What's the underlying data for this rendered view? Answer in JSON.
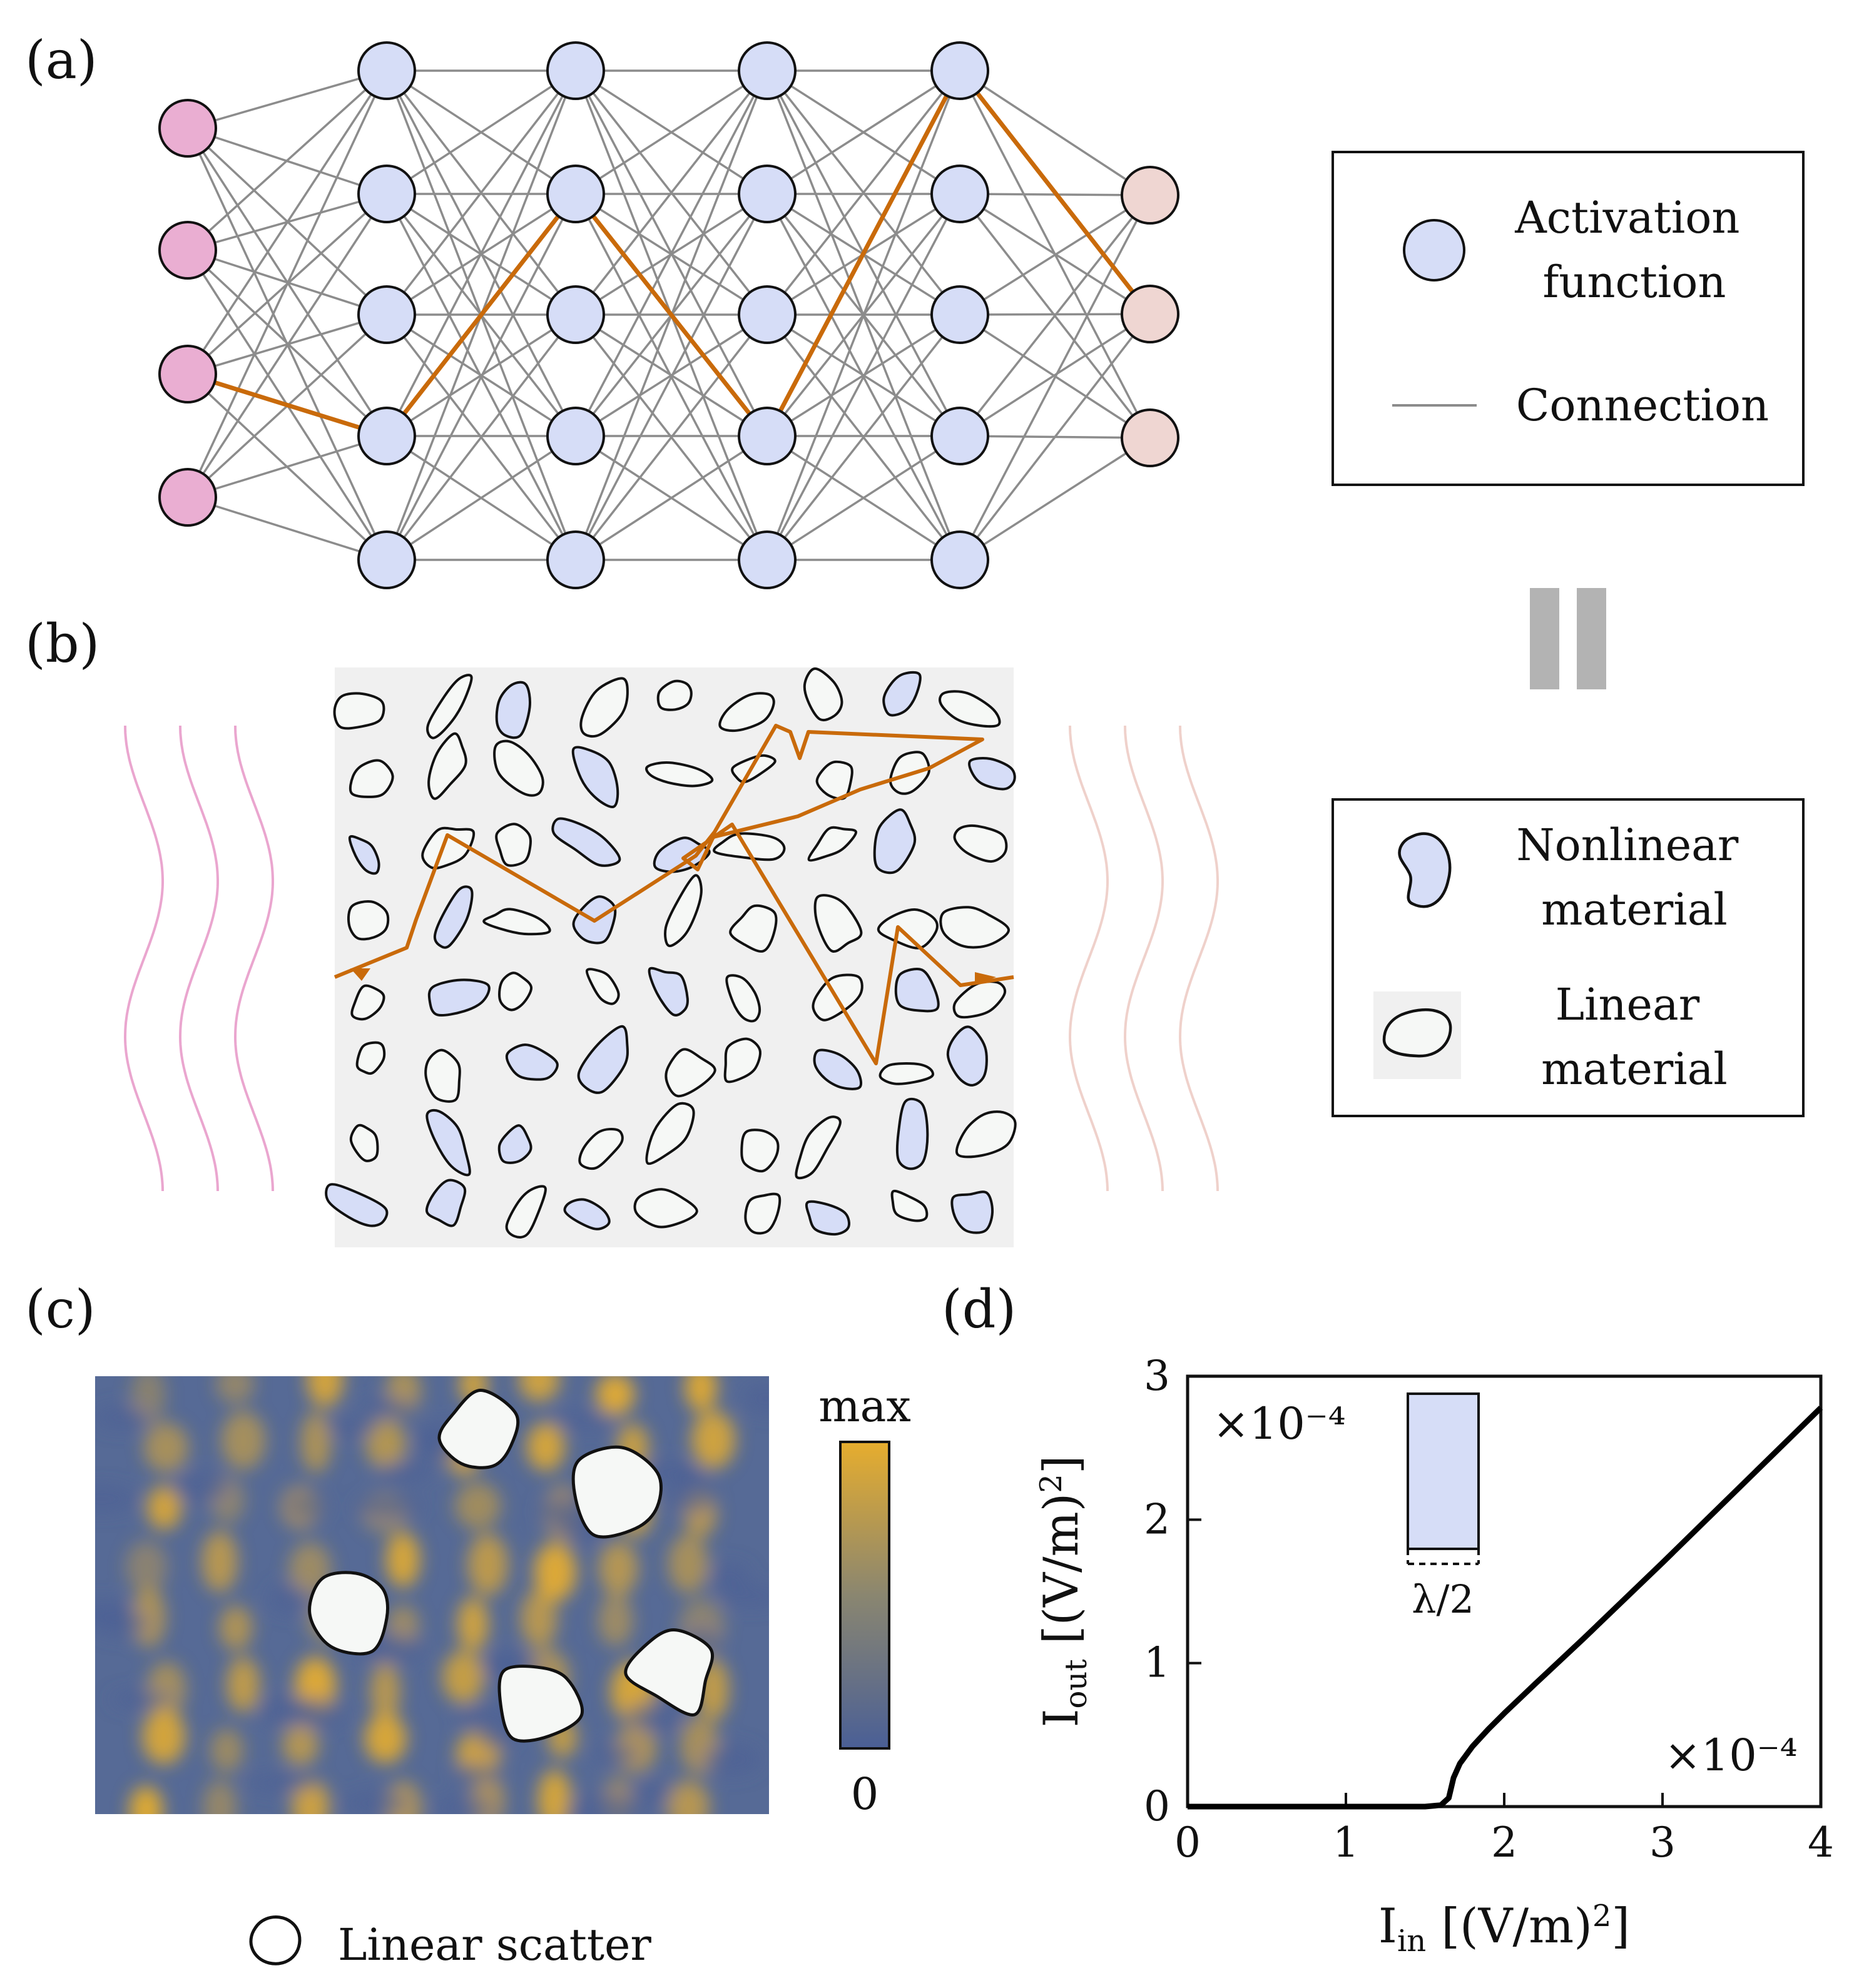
{
  "panels": {
    "a": {
      "label": "(a)",
      "network": {
        "layer_sizes": [
          4,
          5,
          5,
          5,
          5,
          3
        ],
        "highlight_path": [
          2,
          3,
          1,
          3,
          0,
          1
        ],
        "input_color": "#eaaed2",
        "hidden_color": "#d6ddf7",
        "output_color": "#efd6d2",
        "edge_color": "#8c8c8c",
        "path_color": "#c96a0a"
      },
      "legend": {
        "activation": "Activation\nfunction",
        "connection": "Connection"
      }
    },
    "equals_color": "#b3b3b3",
    "b": {
      "label": "(b)",
      "background_color": "#f0f0f0",
      "nonlinear_color": "#d6ddf7",
      "linear_color": "#f6f8f6",
      "wave_in_color": "#eaa6cf",
      "wave_out_color": "#efd1cb",
      "legend": {
        "nonlinear": "Nonlinear\nmaterial",
        "linear": "Linear\nmaterial"
      }
    },
    "c": {
      "label": "(c)",
      "colorbar": {
        "max_label": "max",
        "min_label": "0",
        "colors": [
          "#e6ad2e",
          "#8a8670",
          "#4a5f96"
        ]
      },
      "legend": {
        "scatter": "Linear scatter"
      }
    },
    "d": {
      "label": "(d)",
      "inset": {
        "label": "λ/2"
      }
    }
  },
  "chart_data": {
    "type": "line",
    "xlabel": "I_in [(V/m)^2]",
    "ylabel": "I_out [(V/m)^2]",
    "xlim": [
      0,
      4
    ],
    "ylim": [
      0,
      3
    ],
    "xticks": [
      "0",
      "1",
      "2",
      "3",
      "4"
    ],
    "yticks": [
      "0",
      "1",
      "2",
      "3"
    ],
    "x_multiplier": "×10⁻⁴",
    "y_multiplier": "×10⁻⁴",
    "series": [
      {
        "name": "I_out",
        "x": [
          0,
          0.5,
          1.0,
          1.5,
          1.6,
          1.65,
          1.68,
          1.72,
          1.8,
          1.9,
          2.0,
          2.2,
          2.5,
          3.0,
          3.5,
          4.0
        ],
        "y": [
          0,
          0,
          0,
          0,
          0.01,
          0.06,
          0.2,
          0.3,
          0.42,
          0.54,
          0.65,
          0.86,
          1.17,
          1.7,
          2.24,
          2.78
        ]
      }
    ]
  }
}
